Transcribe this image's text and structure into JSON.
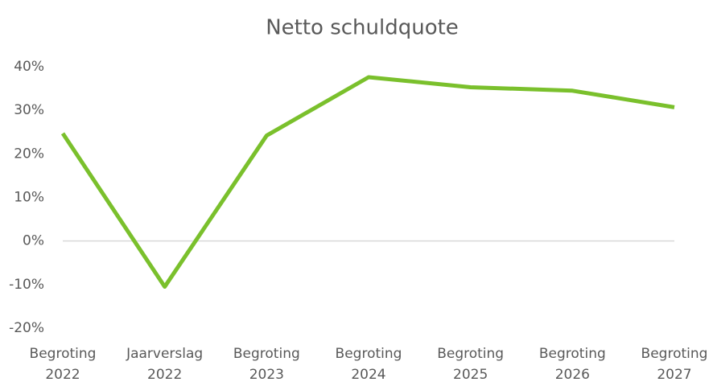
{
  "chart_data": {
    "type": "line",
    "title": "Netto schuldquote",
    "categories": [
      "Begroting 2022",
      "Jaarverslag 2022",
      "Begroting 2023",
      "Begroting 2024",
      "Begroting 2025",
      "Begroting 2026",
      "Begroting 2027"
    ],
    "series": [
      {
        "name": "Netto schuldquote",
        "color": "#7ac02c",
        "values": [
          24.7,
          -10.5,
          24.2,
          37.6,
          35.3,
          34.5,
          30.7
        ]
      }
    ],
    "ylim": [
      -20,
      40
    ],
    "yticks": [
      {
        "value": -20,
        "label": "-20%"
      },
      {
        "value": -10,
        "label": "-10%"
      },
      {
        "value": 0,
        "label": "0%"
      },
      {
        "value": 10,
        "label": "10%"
      },
      {
        "value": 20,
        "label": "20%"
      },
      {
        "value": 30,
        "label": "30%"
      },
      {
        "value": 40,
        "label": "40%"
      }
    ],
    "grid": false,
    "legend": false
  }
}
